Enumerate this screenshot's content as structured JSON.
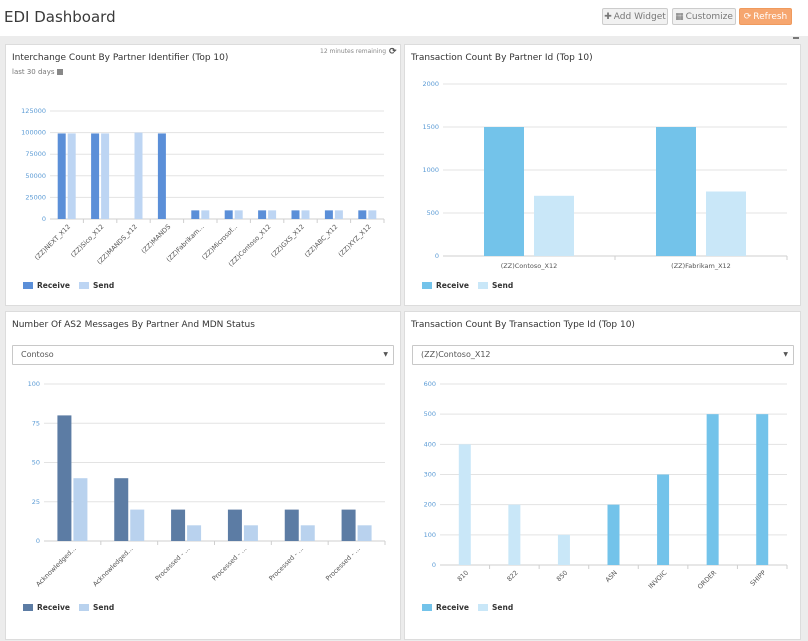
{
  "header": {
    "title": "EDI Dashboard",
    "add_widget_label": "Add Widget",
    "customize_label": "Customize",
    "refresh_label": "Refresh"
  },
  "colors": {
    "receive_blue": "#5b8fd8",
    "send_blue": "#bdd5f3",
    "receive_cyan": "#73c3ea",
    "send_cyan": "#c9e7f8",
    "receive_navy": "#5c7ca4",
    "send_navy": "#b9d2ee",
    "refresh_button": "#f6a66f"
  },
  "panels": [
    {
      "title": "Interchange Count By Partner Identifier (Top 10)",
      "subtitle": "last 30 days",
      "remaining": "12 minutes remaining"
    },
    {
      "title": "Transaction Count By Partner Id (Top 10)"
    },
    {
      "title": "Number Of AS2 Messages By Partner And MDN Status",
      "select_value": "Contoso"
    },
    {
      "title": "Transaction Count By Transaction Type Id (Top 10)",
      "select_value": "(ZZ)Contoso_X12"
    }
  ],
  "chart_data": [
    {
      "type": "bar",
      "title": "Interchange Count By Partner Identifier (Top 10)",
      "categories": [
        "(ZZ)NEXT_X12",
        "(ZZ)Sico_X12",
        "(ZZ)MANDS_x12",
        "(ZZ)MANDS",
        "(ZZ)Fabrikam...",
        "(ZZ)Microsof...",
        "(ZZ)Contoso_X12",
        "(ZZ)GXS_X12",
        "(ZZ)ABC_X12",
        "(ZZ)XYZ_X12"
      ],
      "series": [
        {
          "name": "Receive",
          "values": [
            99000,
            99000,
            0,
            99000,
            10000,
            10000,
            10000,
            10000,
            10000,
            10000
          ]
        },
        {
          "name": "Send",
          "values": [
            99000,
            99000,
            100000,
            0,
            10000,
            10000,
            10000,
            10000,
            10000,
            10000
          ]
        }
      ],
      "yticks": [
        "0",
        "25000",
        "50000",
        "75000",
        "100000",
        "125000"
      ],
      "ylim": [
        0,
        125000
      ],
      "legend": "bottom-left"
    },
    {
      "type": "bar",
      "title": "Transaction Count By Partner Id (Top 10)",
      "categories": [
        "(ZZ)Contoso_X12",
        "(ZZ)Fabrikam_X12"
      ],
      "series": [
        {
          "name": "Receive",
          "values": [
            1500,
            1500
          ]
        },
        {
          "name": "Send",
          "values": [
            700,
            750
          ]
        }
      ],
      "yticks": [
        "0",
        "500",
        "1000",
        "1500",
        "2000"
      ],
      "ylim": [
        0,
        2000
      ],
      "legend": "bottom-left"
    },
    {
      "type": "bar",
      "title": "Number Of AS2 Messages By Partner And MDN Status",
      "categories": [
        "Acknowledged...",
        "Acknowledged...",
        "Processed - ...",
        "Processed - ...",
        "Processed - ...",
        "Processed - ..."
      ],
      "series": [
        {
          "name": "Receive",
          "values": [
            80,
            40,
            20,
            20,
            20,
            20
          ]
        },
        {
          "name": "Send",
          "values": [
            40,
            20,
            10,
            10,
            10,
            10
          ]
        }
      ],
      "yticks": [
        "0",
        "25",
        "50",
        "75",
        "100"
      ],
      "ylim": [
        0,
        100
      ],
      "legend": "bottom-left"
    },
    {
      "type": "bar",
      "title": "Transaction Count By Transaction Type Id (Top 10)",
      "categories": [
        "810",
        "822",
        "850",
        "ASN",
        "INVOIC",
        "ORDER",
        "SHIPP"
      ],
      "series": [
        {
          "name": "Receive",
          "values": [
            0,
            0,
            0,
            200,
            300,
            500,
            500
          ]
        },
        {
          "name": "Send",
          "values": [
            400,
            200,
            100,
            0,
            0,
            0,
            0
          ]
        }
      ],
      "yticks": [
        "0",
        "100",
        "200",
        "300",
        "400",
        "500",
        "600"
      ],
      "ylim": [
        0,
        600
      ],
      "legend": "bottom-left"
    }
  ]
}
